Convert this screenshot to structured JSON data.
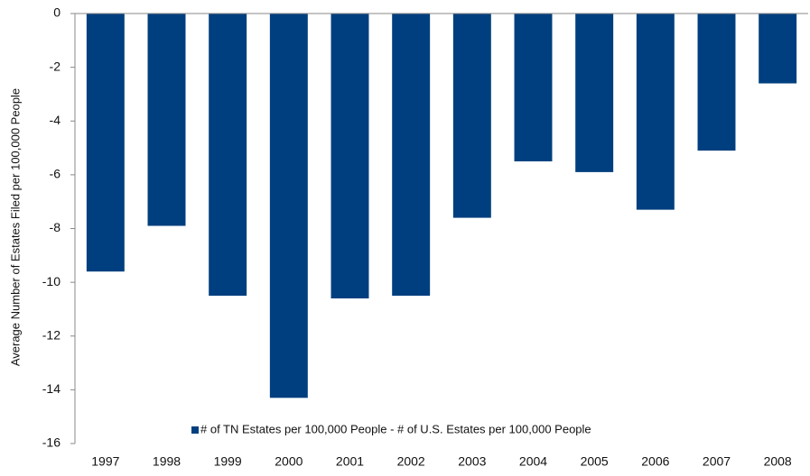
{
  "chart_data": {
    "type": "bar",
    "y_label": "Average Number of Estates Filed per 100,000 People",
    "categories": [
      "1997",
      "1998",
      "1999",
      "2000",
      "2001",
      "2002",
      "2003",
      "2004",
      "2005",
      "2006",
      "2007",
      "2008"
    ],
    "series": [
      {
        "name": "# of TN Estates per 100,000 People - # of U.S. Estates per 100,000 People",
        "color": "#003f7f",
        "values": [
          -9.6,
          -7.9,
          -10.5,
          -14.3,
          -10.6,
          -10.5,
          -7.6,
          -5.5,
          -5.9,
          -7.3,
          -5.1,
          -2.6
        ]
      }
    ],
    "ylim": [
      -16,
      0
    ],
    "yticks": [
      0,
      -2,
      -4,
      -6,
      -8,
      -10,
      -12,
      -14,
      -16
    ],
    "legend": "bottom",
    "grid": false
  }
}
